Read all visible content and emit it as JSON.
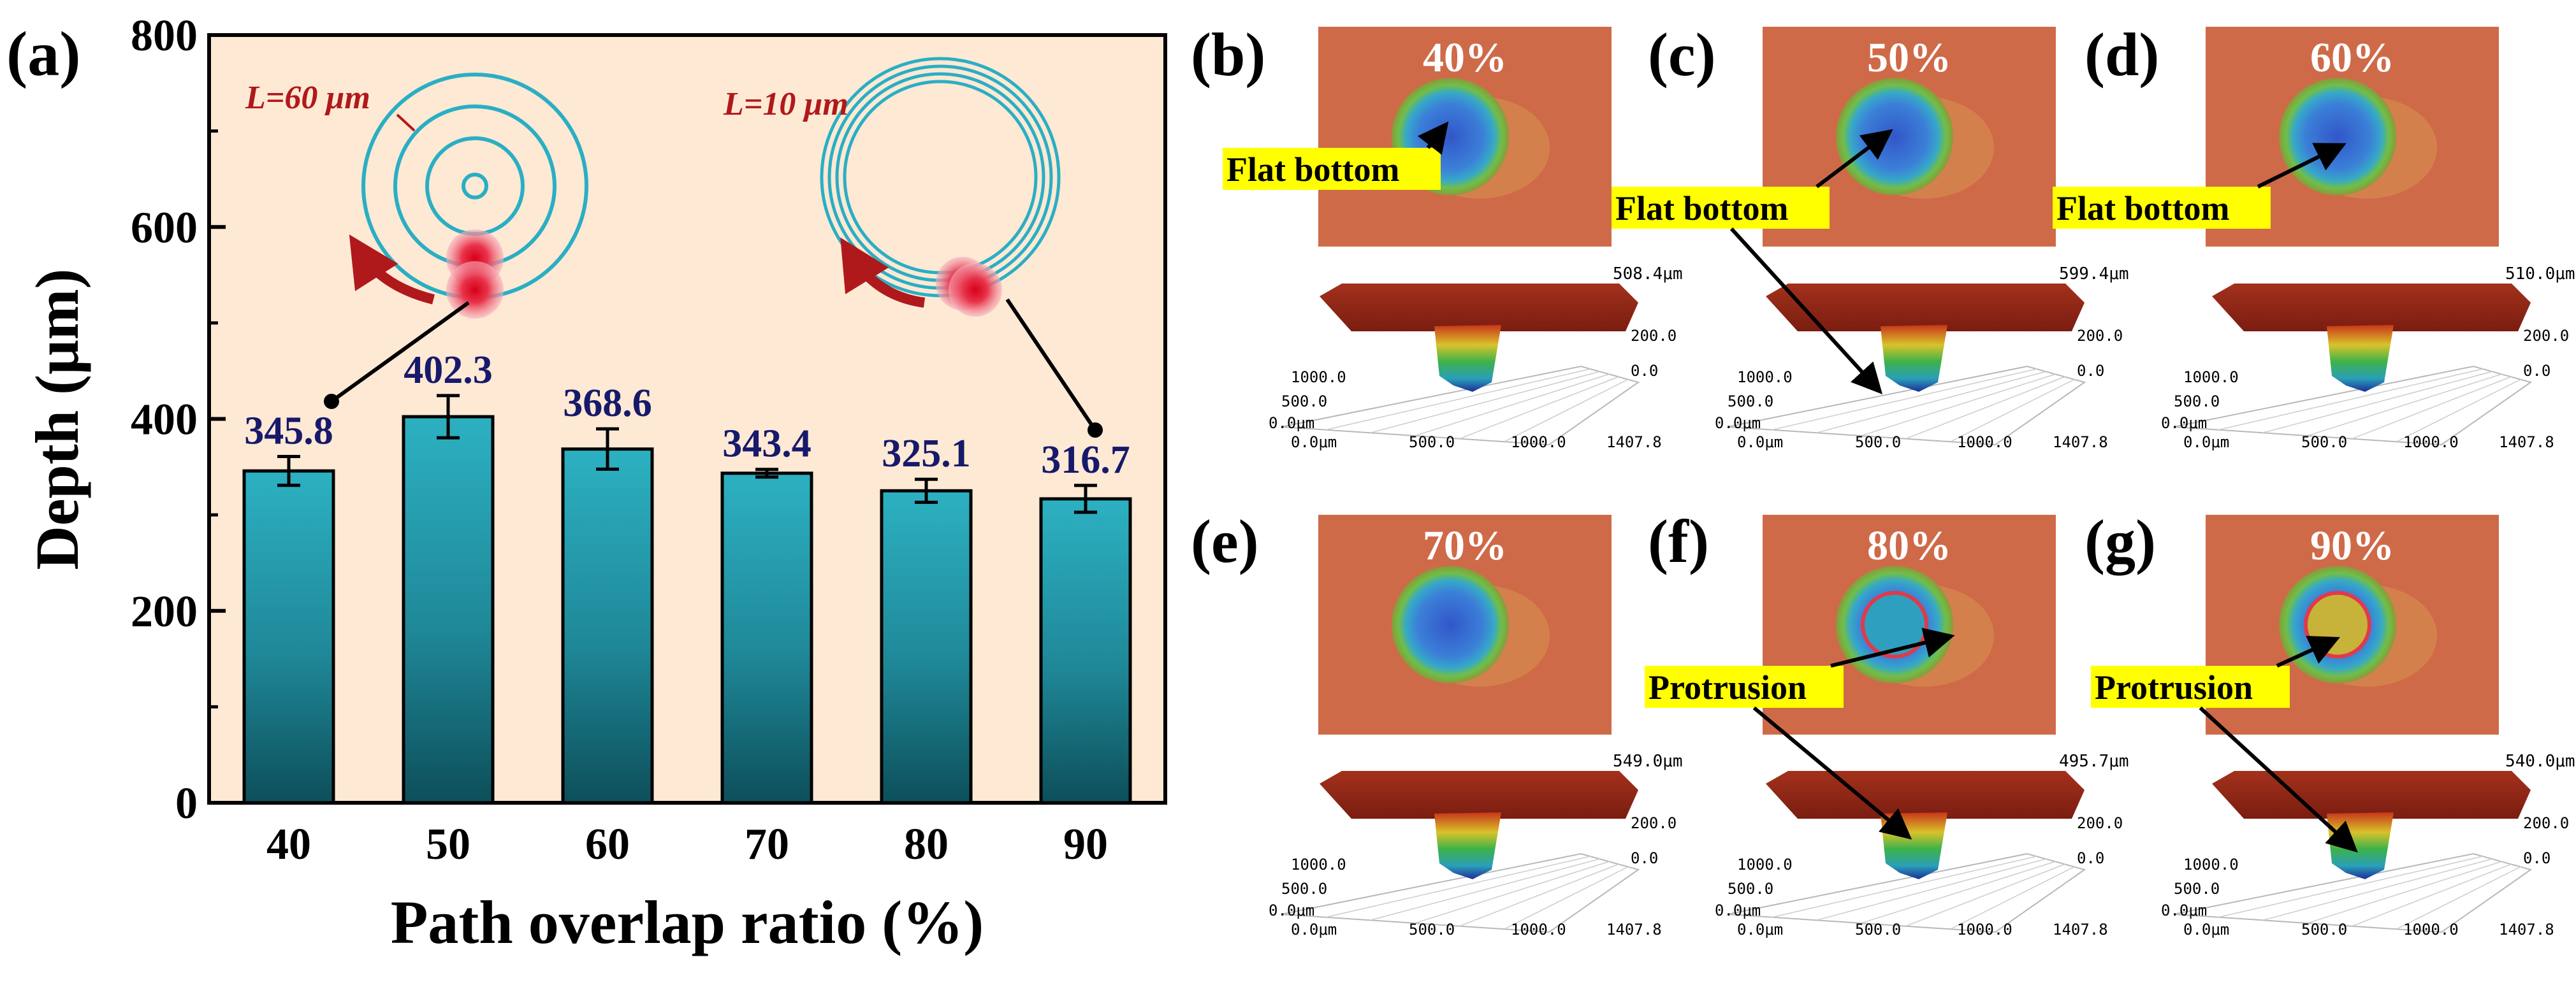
{
  "chart_data": {
    "type": "bar",
    "panel_label": "(a)",
    "categories": [
      "40",
      "50",
      "60",
      "70",
      "80",
      "90"
    ],
    "values": [
      345.8,
      402.3,
      368.6,
      343.4,
      325.1,
      316.7
    ],
    "value_labels": [
      "345.8",
      "402.3",
      "368.6",
      "343.4",
      "325.1",
      "316.7"
    ],
    "errors": [
      15,
      22,
      21,
      4,
      12,
      14
    ],
    "xlabel": "Path overlap ratio (%)",
    "ylabel": "Depth (μm)",
    "ylim": [
      0,
      800
    ],
    "yticks": [
      "0",
      "200",
      "400",
      "600",
      "800"
    ],
    "colors": {
      "bar_top": "#2cb1c2",
      "bar_bottom": "#0d4f5a",
      "background": "#fde9d4",
      "value_label": "#17196b",
      "path_line": "#2aaec4",
      "arrow": "#b0191b"
    },
    "insets": [
      {
        "label": "L=60 μm",
        "description": "concentric circular scan paths"
      },
      {
        "label": "L=10 μm",
        "description": "tightly spaced circular scan paths"
      }
    ]
  },
  "panels": [
    {
      "label": "(b)",
      "percent": "40%",
      "annotation": "Flat bottom",
      "zmax": "508.4μm"
    },
    {
      "label": "(c)",
      "percent": "50%",
      "annotation": "Flat bottom",
      "zmax": "599.4μm"
    },
    {
      "label": "(d)",
      "percent": "60%",
      "annotation": "Flat bottom",
      "zmax": "510.0μm"
    },
    {
      "label": "(e)",
      "percent": "70%",
      "annotation": "",
      "zmax": "549.0μm"
    },
    {
      "label": "(f)",
      "percent": "80%",
      "annotation": "Protrusion",
      "zmax": "495.7μm"
    },
    {
      "label": "(g)",
      "percent": "90%",
      "annotation": "Protrusion",
      "zmax": "540.0μm"
    }
  ],
  "profile_axes": {
    "x_ticks": [
      "0.0μm",
      "500.0",
      "1000.0",
      "1407.8"
    ],
    "y_ticks": [
      "0.0μm",
      "500.0",
      "1000.0"
    ],
    "z_ticks": [
      "200.0",
      "0.0"
    ]
  }
}
